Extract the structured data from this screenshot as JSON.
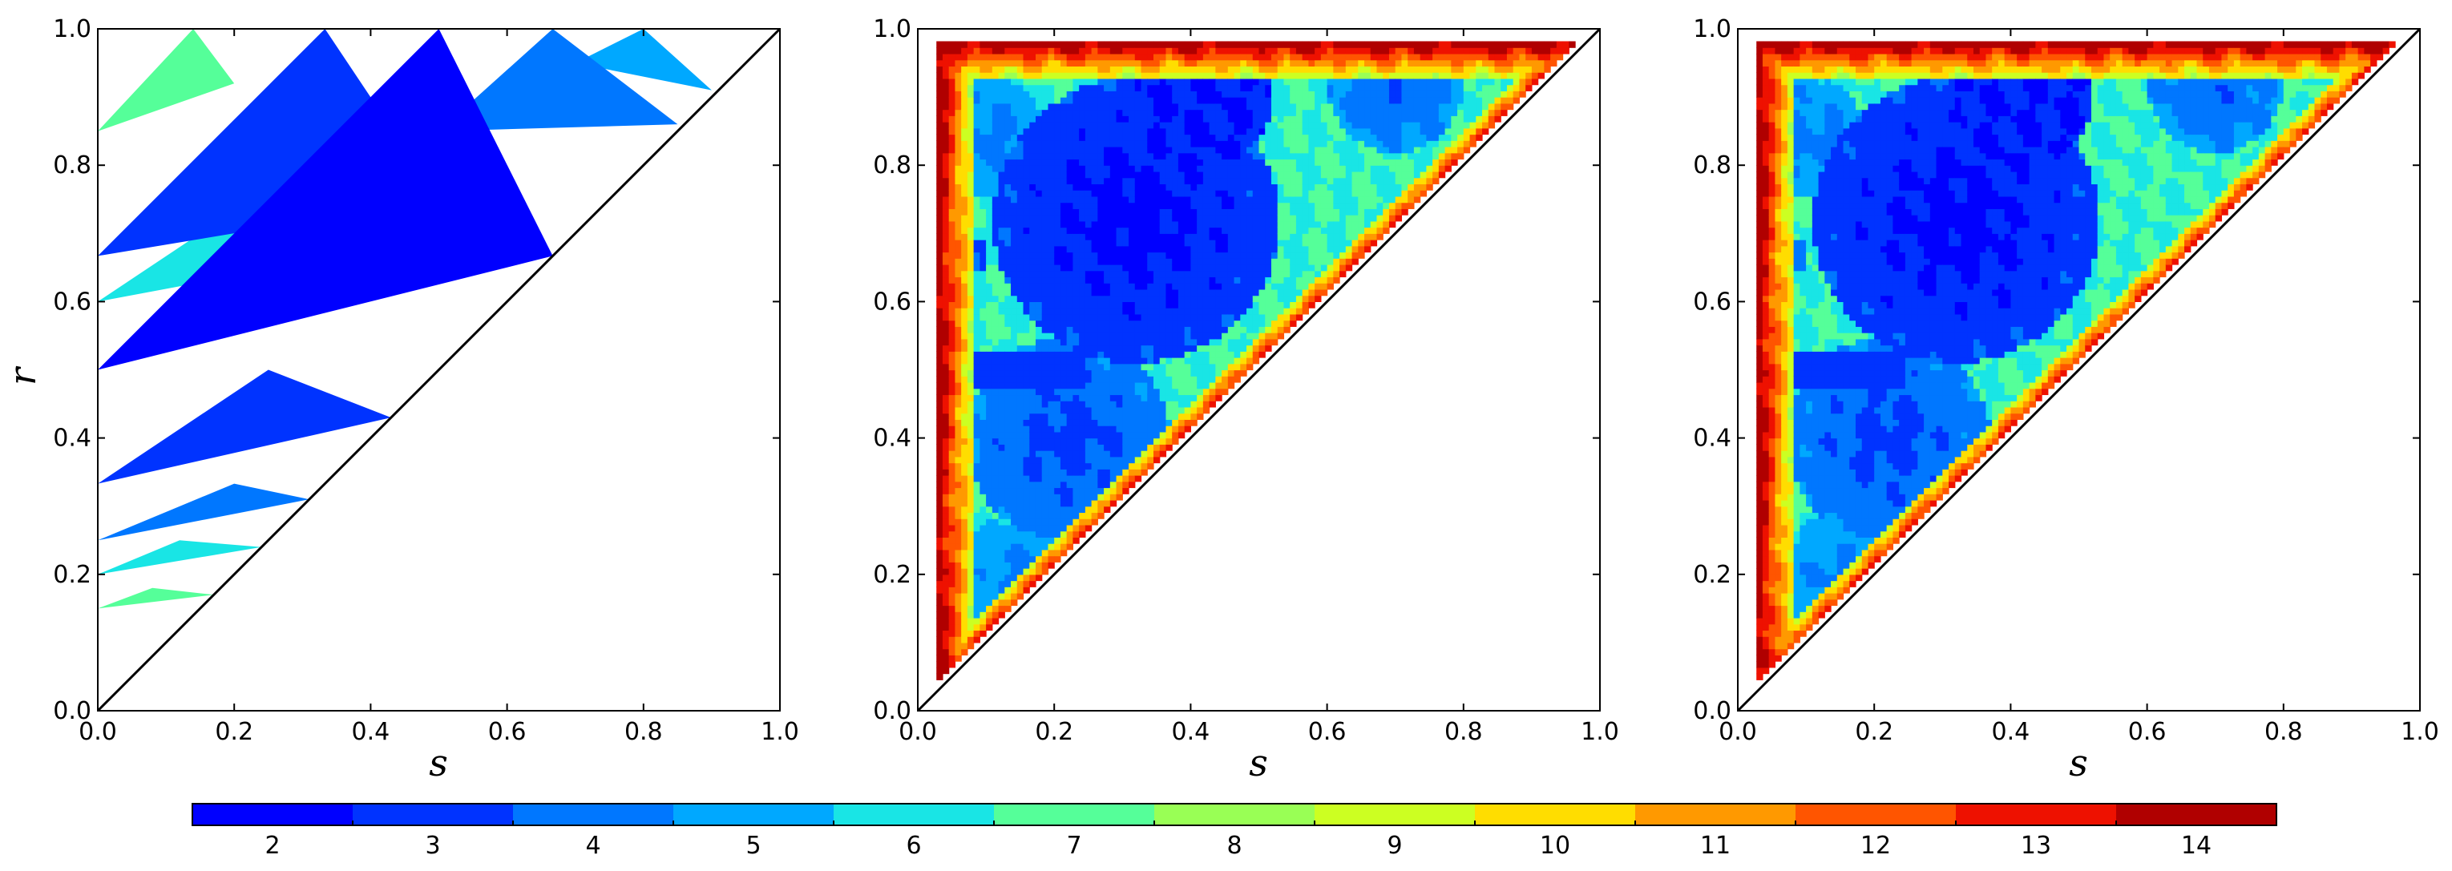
{
  "chart_data": [
    {
      "type": "heatmap",
      "panel": "left",
      "xlabel": "s",
      "ylabel": "r",
      "xlim": [
        0,
        1
      ],
      "ylim": [
        0,
        1
      ],
      "xticks": [
        "0.0",
        "0.2",
        "0.4",
        "0.6",
        "0.8",
        "1.0"
      ],
      "yticks": [
        "0.0",
        "0.2",
        "0.4",
        "0.6",
        "0.8",
        "1.0"
      ],
      "diagonal_line": true,
      "regions": [
        {
          "value": 2,
          "vertices": [
            [
              0,
              0.5
            ],
            [
              0.5,
              1.0
            ],
            [
              0.667,
              0.667
            ]
          ]
        },
        {
          "value": 3,
          "vertices": [
            [
              0,
              0.667
            ],
            [
              0.333,
              1.0
            ],
            [
              0.5,
              0.75
            ]
          ]
        },
        {
          "value": 3,
          "vertices": [
            [
              0,
              0.333
            ],
            [
              0.25,
              0.5
            ],
            [
              0.43,
              0.43
            ]
          ]
        },
        {
          "value": 4,
          "vertices": [
            [
              0.5,
              0.85
            ],
            [
              0.667,
              1.0
            ],
            [
              0.85,
              0.86
            ]
          ]
        },
        {
          "value": 4,
          "vertices": [
            [
              0,
              0.25
            ],
            [
              0.2,
              0.333
            ],
            [
              0.31,
              0.31
            ]
          ]
        },
        {
          "value": 5,
          "vertices": [
            [
              0.7,
              0.95
            ],
            [
              0.8,
              1.0
            ],
            [
              0.9,
              0.91
            ]
          ]
        },
        {
          "value": 6,
          "vertices": [
            [
              0,
              0.6
            ],
            [
              0.18,
              0.72
            ],
            [
              0.32,
              0.66
            ]
          ]
        },
        {
          "value": 6,
          "vertices": [
            [
              0,
              0.2
            ],
            [
              0.12,
              0.25
            ],
            [
              0.24,
              0.24
            ]
          ]
        },
        {
          "value": 7,
          "vertices": [
            [
              0,
              0.15
            ],
            [
              0.08,
              0.18
            ],
            [
              0.17,
              0.17
            ]
          ]
        },
        {
          "value": 7,
          "vertices": [
            [
              0,
              0.85
            ],
            [
              0.14,
              1.0
            ],
            [
              0.2,
              0.92
            ]
          ]
        }
      ]
    },
    {
      "type": "heatmap",
      "panel": "middle",
      "xlabel": "s",
      "xlim": [
        0,
        1
      ],
      "ylim": [
        0,
        1
      ],
      "xticks": [
        "0.0",
        "0.2",
        "0.4",
        "0.6",
        "0.8",
        "1.0"
      ],
      "yticks": [
        "0.0",
        "0.2",
        "0.4",
        "0.6",
        "0.8",
        "1.0"
      ],
      "diagonal_line": true,
      "domain": "triangle 0.03 < s < r < 0.98",
      "value_range": [
        2,
        14
      ]
    },
    {
      "type": "heatmap",
      "panel": "right",
      "xlabel": "s",
      "xlim": [
        0,
        1
      ],
      "ylim": [
        0,
        1
      ],
      "xticks": [
        "0.0",
        "0.2",
        "0.4",
        "0.6",
        "0.8",
        "1.0"
      ],
      "yticks": [
        "0.0",
        "0.2",
        "0.4",
        "0.6",
        "0.8",
        "1.0"
      ],
      "diagonal_line": true,
      "domain": "triangle 0.03 < s < r < 0.98",
      "value_range": [
        2,
        14
      ]
    }
  ],
  "colorbar": {
    "orientation": "horizontal",
    "ticks": [
      "2",
      "3",
      "4",
      "5",
      "6",
      "7",
      "8",
      "9",
      "10",
      "11",
      "12",
      "13",
      "14"
    ],
    "colors": [
      "#0000ff",
      "#0033ff",
      "#0077ff",
      "#00a8ff",
      "#19e5e5",
      "#55ff99",
      "#99ff55",
      "#ccff22",
      "#ffdd00",
      "#ff9900",
      "#ff5500",
      "#ee1100",
      "#b00000"
    ]
  }
}
